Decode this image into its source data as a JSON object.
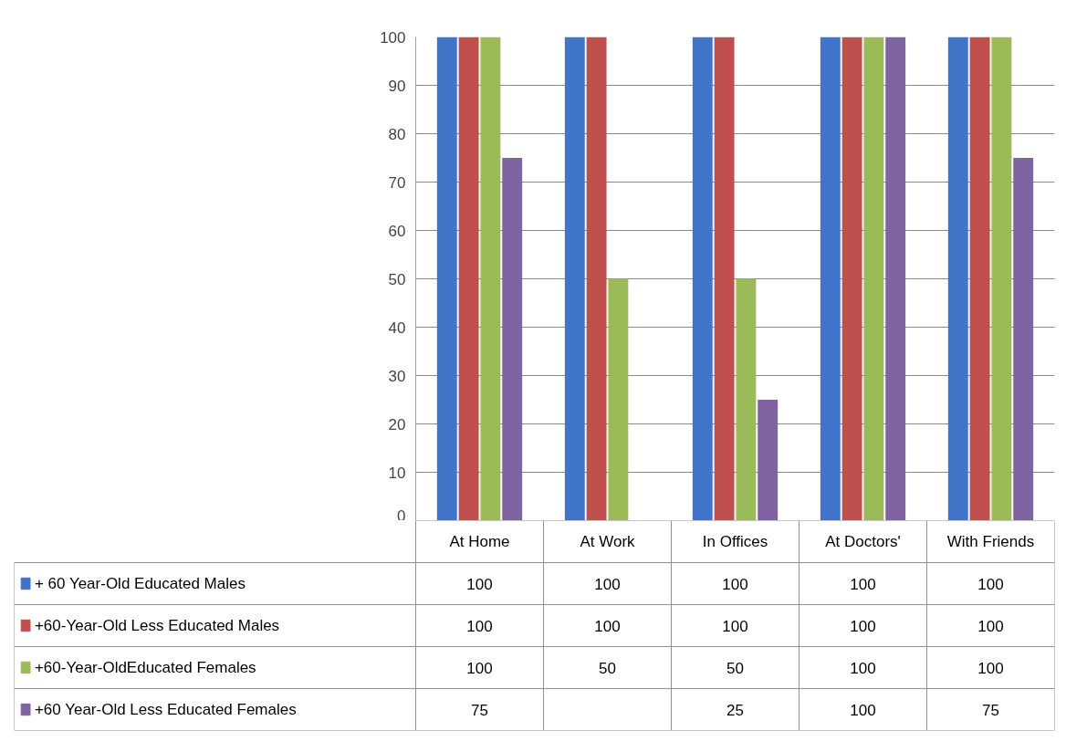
{
  "chart_data": {
    "type": "bar",
    "categories": [
      "At Home",
      "At Work",
      "In Offices",
      "At Doctors'",
      "With Friends"
    ],
    "series": [
      {
        "name": "+ 60 Year-Old Educated Males",
        "color": "#3f74c9",
        "values": [
          100,
          100,
          100,
          100,
          100
        ]
      },
      {
        "name": "+60-Year-Old Less Educated Males",
        "color": "#c0504d",
        "values": [
          100,
          100,
          100,
          100,
          100
        ]
      },
      {
        "name": "+60-Year-OldEducated Females",
        "color": "#9bbb59",
        "values": [
          100,
          50,
          50,
          100,
          100
        ]
      },
      {
        "name": "+60 Year-Old Less Educated Females",
        "color": "#8064a2",
        "values": [
          75,
          null,
          25,
          100,
          75
        ]
      }
    ],
    "ylim": [
      0,
      100
    ],
    "yticks": [
      0,
      10,
      20,
      30,
      40,
      50,
      60,
      70,
      80,
      90,
      100
    ],
    "grid": "y",
    "legend": "bottom",
    "data_labels": true
  }
}
